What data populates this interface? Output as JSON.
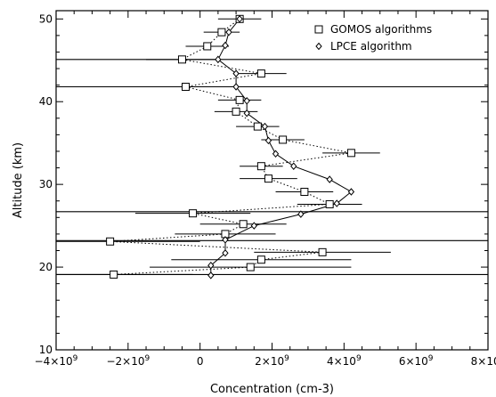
{
  "chart_data": {
    "type": "scatter",
    "title": "",
    "xlabel": "Concentration (cm-3)",
    "ylabel": "Altitude (km)",
    "xlim": [
      -4000000000.0,
      8000000000.0
    ],
    "ylim": [
      10,
      51
    ],
    "grid": false,
    "legend_position": "top-right",
    "x_ticks": [
      {
        "value": -4000000000.0,
        "mant": "−4×10",
        "exp": "9"
      },
      {
        "value": -2000000000.0,
        "mant": "−2×10",
        "exp": "9"
      },
      {
        "value": 0,
        "mant": "0",
        "exp": ""
      },
      {
        "value": 2000000000.0,
        "mant": "2×10",
        "exp": "9"
      },
      {
        "value": 4000000000.0,
        "mant": "4×10",
        "exp": "9"
      },
      {
        "value": 6000000000.0,
        "mant": "6×10",
        "exp": "9"
      },
      {
        "value": 8000000000.0,
        "mant": "8×10",
        "exp": "9"
      }
    ],
    "y_ticks": [
      10,
      20,
      30,
      40,
      50
    ],
    "series": [
      {
        "name": "GOMOS algorithms",
        "marker": "square",
        "line": "dotted",
        "points": [
          {
            "y": 50.0,
            "x": 1100000000.0,
            "xerr": 600000000.0
          },
          {
            "y": 48.4,
            "x": 600000000.0,
            "xerr": 500000000.0
          },
          {
            "y": 46.7,
            "x": 200000000.0,
            "xerr": 600000000.0
          },
          {
            "y": 45.1,
            "x": -500000000.0,
            "xerr": 1000000000.0
          },
          {
            "y": 43.4,
            "x": 1700000000.0,
            "xerr": 700000000.0
          },
          {
            "y": 41.8,
            "x": -400000000.0,
            "xerr": 1300000000.0
          },
          {
            "y": 40.2,
            "x": 1100000000.0,
            "xerr": 600000000.0
          },
          {
            "y": 38.8,
            "x": 1000000000.0,
            "xerr": 600000000.0
          },
          {
            "y": 37.0,
            "x": 1600000000.0,
            "xerr": 600000000.0
          },
          {
            "y": 35.4,
            "x": 2300000000.0,
            "xerr": 600000000.0
          },
          {
            "y": 33.8,
            "x": 4200000000.0,
            "xerr": 800000000.0
          },
          {
            "y": 32.2,
            "x": 1700000000.0,
            "xerr": 600000000.0
          },
          {
            "y": 30.7,
            "x": 1900000000.0,
            "xerr": 800000000.0
          },
          {
            "y": 29.1,
            "x": 2900000000.0,
            "xerr": 800000000.0
          },
          {
            "y": 27.6,
            "x": 3600000000.0,
            "xerr": 900000000.0
          },
          {
            "y": 26.5,
            "x": -200000000.0,
            "xerr": 1600000000.0
          },
          {
            "y": 25.2,
            "x": 1200000000.0,
            "xerr": 1200000000.0
          },
          {
            "y": 24.0,
            "x": 700000000.0,
            "xerr": 1400000000.0
          },
          {
            "y": 23.1,
            "x": -2500000000.0,
            "xerr": 2500000000.0
          },
          {
            "y": 21.8,
            "x": 3400000000.0,
            "xerr": 1900000000.0
          },
          {
            "y": 20.9,
            "x": 1700000000.0,
            "xerr": 2500000000.0
          },
          {
            "y": 20.0,
            "x": 1400000000.0,
            "xerr": 2800000000.0
          },
          {
            "y": 19.1,
            "x": -2400000000.0,
            "xerr": 2200000000.0
          }
        ]
      },
      {
        "name": "LPCE algorithm",
        "marker": "diamond",
        "line": "solid",
        "points": [
          {
            "y": 50.0,
            "x": 1100000000.0
          },
          {
            "y": 48.4,
            "x": 800000000.0
          },
          {
            "y": 46.8,
            "x": 700000000.0
          },
          {
            "y": 45.1,
            "x": 500000000.0
          },
          {
            "y": 43.4,
            "x": 1000000000.0
          },
          {
            "y": 41.8,
            "x": 1000000000.0
          },
          {
            "y": 40.1,
            "x": 1300000000.0
          },
          {
            "y": 38.6,
            "x": 1300000000.0
          },
          {
            "y": 37.0,
            "x": 1800000000.0
          },
          {
            "y": 35.3,
            "x": 1900000000.0
          },
          {
            "y": 33.7,
            "x": 2100000000.0
          },
          {
            "y": 32.2,
            "x": 2600000000.0
          },
          {
            "y": 30.6,
            "x": 3600000000.0
          },
          {
            "y": 29.1,
            "x": 4200000000.0
          },
          {
            "y": 27.7,
            "x": 3800000000.0
          },
          {
            "y": 26.4,
            "x": 2800000000.0
          },
          {
            "y": 25.0,
            "x": 1500000000.0
          },
          {
            "y": 23.3,
            "x": 700000000.0
          },
          {
            "y": 21.7,
            "x": 700000000.0
          },
          {
            "y": 20.2,
            "x": 300000000.0
          },
          {
            "y": 19.0,
            "x": 300000000.0
          }
        ]
      }
    ],
    "reference_lines_y": [
      45.1,
      41.8,
      26.7,
      23.2,
      19.1
    ]
  }
}
